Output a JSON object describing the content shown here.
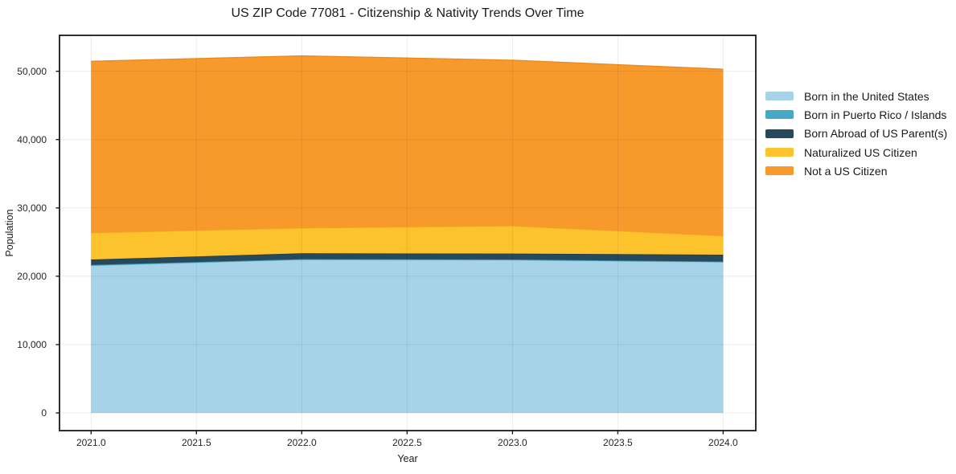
{
  "chart_data": {
    "type": "area",
    "stacked": true,
    "title": "US ZIP Code 77081 - Citizenship & Nativity Trends Over Time",
    "xlabel": "Year",
    "ylabel": "Population",
    "x": [
      2021,
      2022,
      2023,
      2024
    ],
    "series": [
      {
        "name": "Born in the United States",
        "color": "#a6d3e8",
        "edge": "#8ec5de",
        "values": [
          21550,
          22400,
          22350,
          22050
        ]
      },
      {
        "name": "Born in Puerto Rico / Islands",
        "color": "#46a8c5",
        "edge": "#3a96b2",
        "values": [
          100,
          100,
          100,
          100
        ]
      },
      {
        "name": "Born Abroad of US Parent(s)",
        "color": "#26495c",
        "edge": "#1c3947",
        "values": [
          800,
          850,
          870,
          1000
        ]
      },
      {
        "name": "Naturalized US Citizen",
        "color": "#fdc32d",
        "edge": "#edb019",
        "values": [
          3900,
          3700,
          4050,
          2750
        ]
      },
      {
        "name": "Not a US Citizen",
        "color": "#f8992c",
        "edge": "#e8891d",
        "values": [
          25100,
          25200,
          24250,
          24400
        ]
      }
    ],
    "totals": [
      51450,
      52250,
      51620,
      50300
    ],
    "x_ticks": [
      "2021.0",
      "2021.5",
      "2022.0",
      "2022.5",
      "2023.0",
      "2023.5",
      "2024.0"
    ],
    "x_tick_values": [
      2021.0,
      2021.5,
      2022.0,
      2022.5,
      2023.0,
      2023.5,
      2024.0
    ],
    "y_ticks": [
      "0",
      "10,000",
      "20,000",
      "30,000",
      "40,000",
      "50,000"
    ],
    "y_tick_values": [
      0,
      10000,
      20000,
      30000,
      40000,
      50000
    ],
    "x_range": [
      2020.85,
      2024.155
    ],
    "y_range": [
      -2590,
      55250
    ],
    "grid": true,
    "legend_position": "right",
    "colors": {
      "spine": "#1a1a1a",
      "grid_overlay": "rgba(0,0,0,0.075)",
      "background": "#ffffff"
    }
  }
}
